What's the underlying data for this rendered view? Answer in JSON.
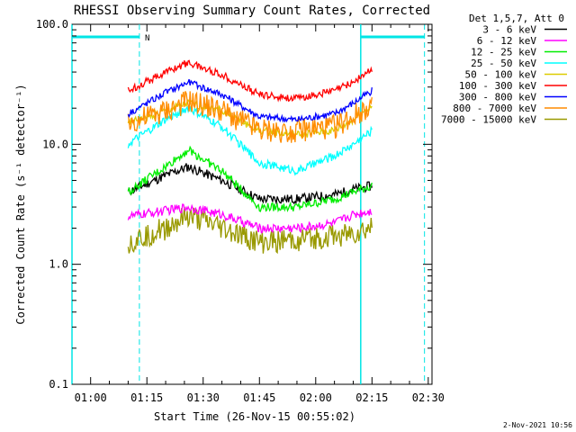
{
  "chart_data": {
    "type": "line",
    "title": "RHESSI Observing Summary Count Rates, Corrected",
    "ylabel": "Corrected Count Rate (s⁻¹ detector⁻¹)",
    "xlabel": "Start Time (26-Nov-15 00:55:02)",
    "y_scale": "log",
    "ylim": [
      0.1,
      100.0
    ],
    "xlim": [
      "00:55:02",
      "02:31:00"
    ],
    "y_ticks": [
      "0.1",
      "1.0",
      "10.0",
      "100.0"
    ],
    "x_ticks": [
      "01:00",
      "01:15",
      "01:30",
      "01:45",
      "02:00",
      "02:15",
      "02:30"
    ],
    "grid": false,
    "legend_position": "top-right outside",
    "legend_header": "Det 1,5,7, Att 0",
    "footer_date": "2-Nov-2021 10:56",
    "flag_label": "N",
    "series": [
      {
        "name": "3 - 6 keV",
        "color": "#000000",
        "x": [
          "01:10",
          "01:20",
          "01:26",
          "01:35",
          "01:45",
          "01:55",
          "02:05",
          "02:10",
          "02:15"
        ],
        "values": [
          4.0,
          5.5,
          6.5,
          5.0,
          3.5,
          3.5,
          3.8,
          4.2,
          4.5
        ]
      },
      {
        "name": "6 - 12 keV",
        "color": "#ff00ff",
        "x": [
          "01:10",
          "01:20",
          "01:26",
          "01:35",
          "01:45",
          "01:55",
          "02:05",
          "02:10",
          "02:15"
        ],
        "values": [
          2.5,
          2.8,
          3.0,
          2.6,
          2.0,
          2.0,
          2.2,
          2.6,
          2.8
        ]
      },
      {
        "name": "12 - 25 keV",
        "color": "#00ee00",
        "x": [
          "01:10",
          "01:20",
          "01:26",
          "01:35",
          "01:45",
          "01:55",
          "02:05",
          "02:10",
          "02:15"
        ],
        "values": [
          4.0,
          6.5,
          9.0,
          6.0,
          3.0,
          3.0,
          3.5,
          4.0,
          4.5
        ]
      },
      {
        "name": "25 - 50 keV",
        "color": "#00ffff",
        "x": [
          "01:10",
          "01:20",
          "01:26",
          "01:35",
          "01:45",
          "01:55",
          "02:05",
          "02:10",
          "02:15"
        ],
        "values": [
          10.0,
          16.0,
          20.0,
          14.0,
          7.0,
          6.0,
          8.0,
          10.0,
          13.0
        ]
      },
      {
        "name": "50 - 100 keV",
        "color": "#ddcc00",
        "x": [
          "01:10",
          "01:20",
          "01:26",
          "01:35",
          "01:45",
          "01:55",
          "02:05",
          "02:10",
          "02:15"
        ],
        "values": [
          15.0,
          19.0,
          22.0,
          19.0,
          13.0,
          12.0,
          13.0,
          16.0,
          21.0
        ]
      },
      {
        "name": "100 - 300 keV",
        "color": "#ff0000",
        "x": [
          "01:10",
          "01:20",
          "01:26",
          "01:35",
          "01:45",
          "01:55",
          "02:05",
          "02:10",
          "02:15"
        ],
        "values": [
          28.0,
          40.0,
          48.0,
          38.0,
          26.0,
          24.0,
          28.0,
          33.0,
          42.0
        ]
      },
      {
        "name": "300 - 800 keV",
        "color": "#0000ff",
        "x": [
          "01:10",
          "01:20",
          "01:26",
          "01:35",
          "01:45",
          "01:55",
          "02:05",
          "02:10",
          "02:15"
        ],
        "values": [
          18.0,
          27.0,
          33.0,
          26.0,
          17.0,
          16.0,
          18.0,
          22.0,
          28.0
        ]
      },
      {
        "name": "800 - 7000 keV",
        "color": "#ff8c00",
        "x": [
          "01:10",
          "01:20",
          "01:26",
          "01:35",
          "01:45",
          "01:55",
          "02:05",
          "02:10",
          "02:15"
        ],
        "values": [
          15.0,
          19.0,
          23.0,
          19.0,
          13.0,
          13.0,
          14.0,
          17.0,
          22.0
        ]
      },
      {
        "name": "7000 - 15000 keV",
        "color": "#999900",
        "x": [
          "01:10",
          "01:20",
          "01:26",
          "01:35",
          "01:45",
          "01:55",
          "02:05",
          "02:10",
          "02:15"
        ],
        "values": [
          1.5,
          2.0,
          2.5,
          2.0,
          1.5,
          1.6,
          1.7,
          1.8,
          2.0
        ]
      }
    ],
    "overlays": {
      "solid_vertical_lines": [
        "00:55:02",
        "02:12:00"
      ],
      "dashed_vertical_lines": [
        "01:13:00",
        "02:29:00"
      ],
      "horizontal_bars": [
        [
          "00:55:02",
          "01:13:00"
        ],
        [
          "02:12:00",
          "02:29:00"
        ]
      ],
      "overlay_color": "#00e5e5"
    }
  }
}
